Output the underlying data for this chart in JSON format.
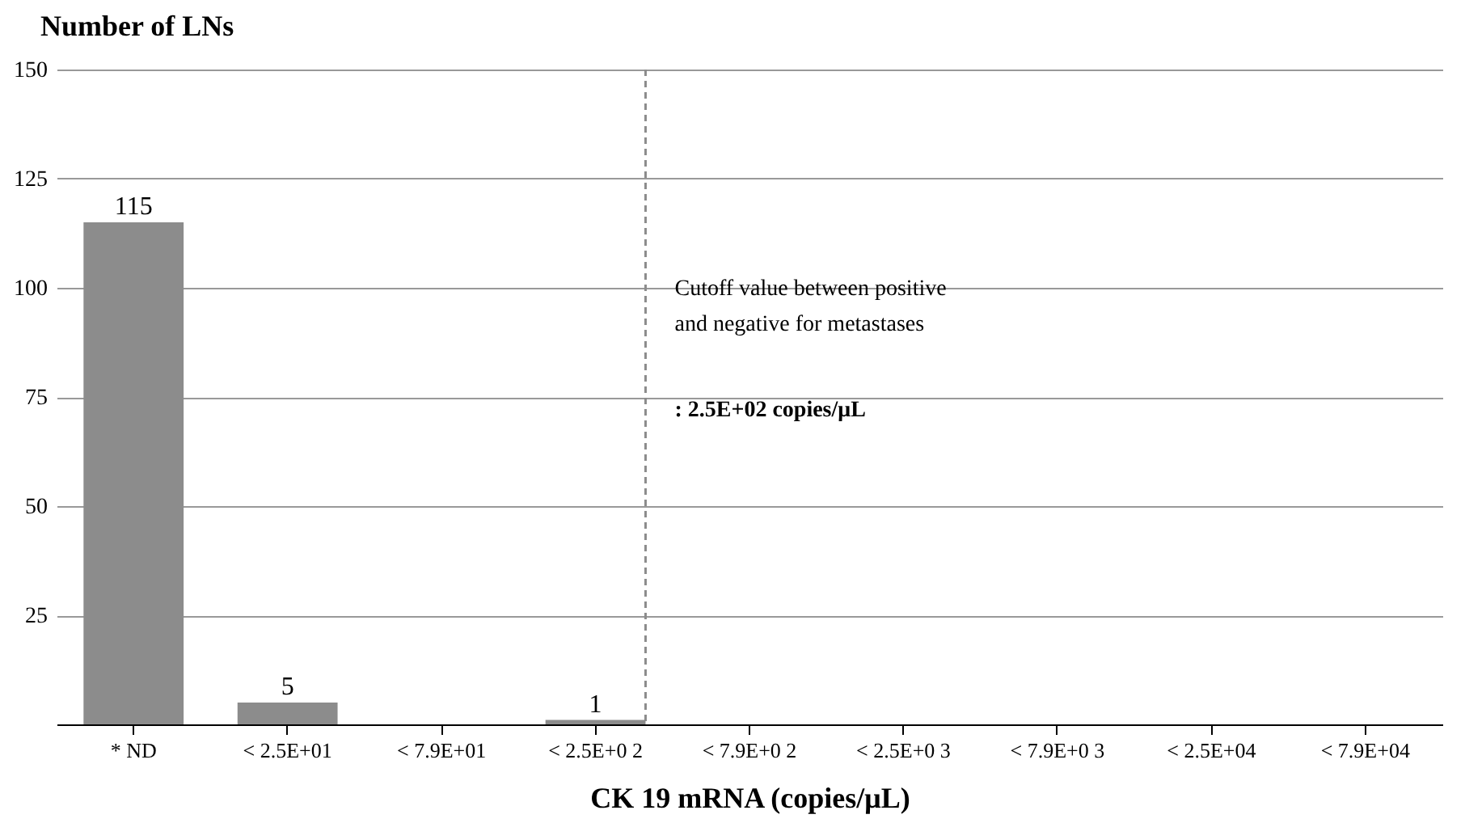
{
  "chart_data": {
    "type": "bar",
    "ylabel": "Number of LNs",
    "xlabel": "CK 19 mRNA (copies/μL)",
    "categories": [
      "* ND",
      "< 2.5E+01",
      "< 7.9E+01",
      "< 2.5E+0 2",
      "< 7.9E+0 2",
      "< 2.5E+0 3",
      "< 7.9E+0 3",
      "< 2.5E+04",
      "< 7.9E+04"
    ],
    "values": [
      115,
      5,
      0,
      1,
      0,
      0,
      0,
      0,
      0
    ],
    "value_labels": [
      "115",
      "5",
      null,
      "1",
      null,
      null,
      null,
      null,
      null
    ],
    "color": "#8c8c8c",
    "ylim": [
      0,
      150
    ],
    "yticks": [
      25,
      50,
      75,
      100,
      125,
      150
    ],
    "grid": "y",
    "ref_lines": [
      {
        "axis": "x",
        "value": "< 2.5E+0 2",
        "line_style": "dashed",
        "color": "#8c8c8c",
        "label": "Cutoff value between positive and negative for metastases"
      }
    ],
    "annotations": [
      ": 2.5E+02 copies/μL"
    ]
  }
}
